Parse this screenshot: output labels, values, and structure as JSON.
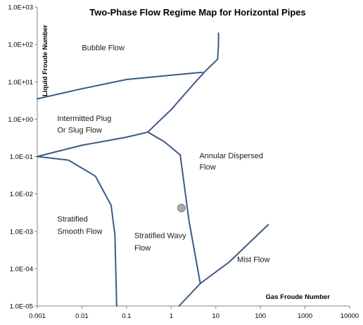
{
  "chart_data": {
    "type": "line",
    "title": "Two-Phase Flow Regime Map for Horizontal Pipes",
    "xlabel": "Gas Froude Number",
    "ylabel": "Liquid Froude Number",
    "x_scale": "log",
    "y_scale": "log",
    "xlim": [
      0.001,
      10000
    ],
    "ylim": [
      1e-05,
      1000
    ],
    "x_ticks": [
      "0.001",
      "0.01",
      "0.1",
      "1",
      "10",
      "100",
      "1000",
      "10000"
    ],
    "y_ticks": [
      "1.0E-05",
      "1.0E-04",
      "1.0E-03",
      "1.0E-02",
      "1.0E-01",
      "1.0E+00",
      "1.0E+01",
      "1.0E+02",
      "1.0E+03"
    ],
    "grid": false,
    "line_color": "#3b5a84",
    "series": [
      {
        "points": [
          [
            0.001,
            3.5
          ],
          [
            0.01,
            6.5
          ],
          [
            0.1,
            11.5
          ],
          [
            1,
            15
          ],
          [
            5,
            18
          ]
        ]
      },
      {
        "points": [
          [
            0.3,
            0.45
          ],
          [
            1,
            1.8
          ],
          [
            3,
            8
          ],
          [
            6,
            20
          ],
          [
            11,
            40
          ]
        ]
      },
      {
        "points": [
          [
            11,
            40
          ],
          [
            11.5,
            100
          ],
          [
            11.5,
            200
          ]
        ]
      },
      {
        "points": [
          [
            0.001,
            0.1
          ],
          [
            0.01,
            0.2
          ],
          [
            0.1,
            0.33
          ],
          [
            0.3,
            0.45
          ]
        ]
      },
      {
        "points": [
          [
            0.3,
            0.45
          ],
          [
            0.7,
            0.25
          ],
          [
            1.6,
            0.11
          ]
        ]
      },
      {
        "points": [
          [
            1.6,
            0.11
          ],
          [
            2.5,
            0.002
          ],
          [
            4.5,
            4e-05
          ]
        ]
      },
      {
        "points": [
          [
            0.001,
            0.1
          ],
          [
            0.005,
            0.08
          ],
          [
            0.02,
            0.03
          ],
          [
            0.045,
            0.005
          ],
          [
            0.055,
            0.0008
          ],
          [
            0.06,
            1e-05
          ]
        ]
      },
      {
        "points": [
          [
            1.5,
            1e-05
          ],
          [
            4.5,
            4e-05
          ],
          [
            20,
            0.00015
          ],
          [
            150,
            0.0015
          ]
        ]
      }
    ],
    "marker_point": {
      "x": 1.7,
      "y": 0.0042,
      "color": "#a7a9ac"
    },
    "annotations": [
      {
        "text": "Bubble Flow",
        "x": 0.01,
        "y": 70
      },
      {
        "text": "Intermitted Plug",
        "x": 0.0028,
        "y": 0.9
      },
      {
        "text": "Or Slug Flow",
        "x": 0.0028,
        "y": 0.44
      },
      {
        "text": "Annular Dispersed",
        "x": 4.3,
        "y": 0.09
      },
      {
        "text": "Flow",
        "x": 4.3,
        "y": 0.045
      },
      {
        "text": "Stratified",
        "x": 0.0028,
        "y": 0.0018
      },
      {
        "text": "Smooth Flow",
        "x": 0.0028,
        "y": 0.00085
      },
      {
        "text": "Stratified Wavy",
        "x": 0.15,
        "y": 0.00065
      },
      {
        "text": "Flow",
        "x": 0.15,
        "y": 0.00031
      },
      {
        "text": "Mist Flow",
        "x": 30,
        "y": 0.00015
      }
    ]
  }
}
